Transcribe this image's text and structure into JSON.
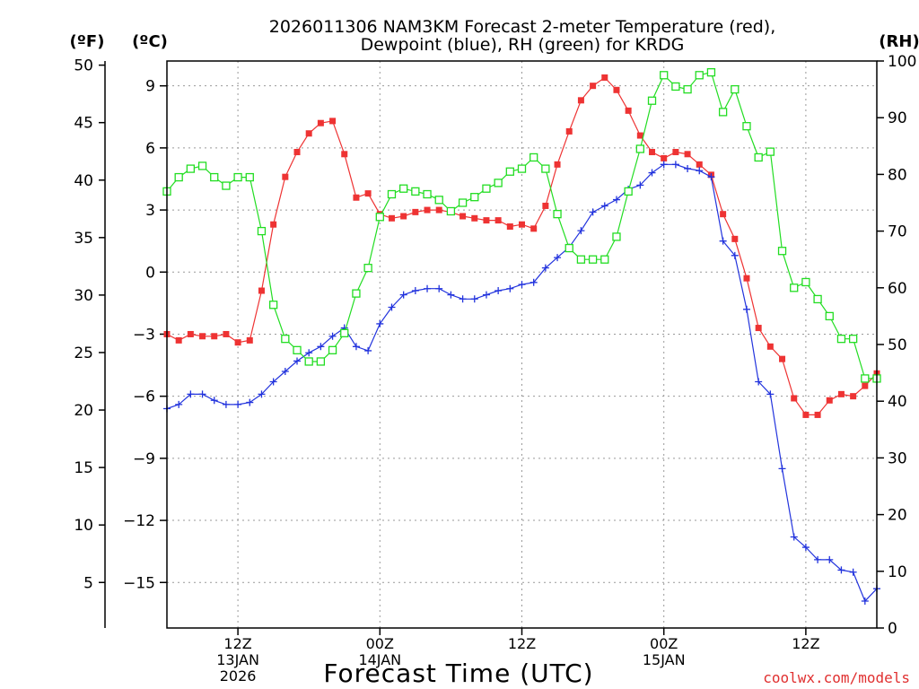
{
  "chart_data": {
    "type": "line",
    "title_line1": "2026011306 NAM3KM Forecast 2-meter Temperature (red),",
    "title_line2": "Dewpoint (blue), RH (green) for KRDG",
    "xlabel": "Forecast Time (UTC)",
    "watermark": "coolwx.com/models",
    "units_left_f": "(ºF)",
    "units_left_c": "(ºC)",
    "units_right": "(RH)",
    "hours_range": [
      0,
      60
    ],
    "ylim_c": [
      -17.2,
      10.2
    ],
    "ylim_rh": [
      0,
      100
    ],
    "x_ticks": [
      {
        "hour": 6,
        "line1": "12Z",
        "line2": "13JAN",
        "line3": "2026"
      },
      {
        "hour": 18,
        "line1": "00Z",
        "line2": "14JAN",
        "line3": ""
      },
      {
        "hour": 30,
        "line1": "12Z",
        "line2": "",
        "line3": ""
      },
      {
        "hour": 42,
        "line1": "00Z",
        "line2": "15JAN",
        "line3": ""
      },
      {
        "hour": 54,
        "line1": "12Z",
        "line2": "",
        "line3": ""
      }
    ],
    "celsius_ticks": [
      "9",
      "6",
      "3",
      "0",
      "−3",
      "−6",
      "−9",
      "−12",
      "−15"
    ],
    "fahrenheit_ticks": [
      "50",
      "45",
      "40",
      "35",
      "30",
      "25",
      "20",
      "15",
      "10",
      "5"
    ],
    "rh_ticks": [
      "100",
      "90",
      "80",
      "70",
      "60",
      "50",
      "40",
      "30",
      "20",
      "10",
      "0"
    ],
    "series": [
      {
        "name": "2-meter Temperature",
        "color": "#ee3333",
        "marker": "filled-square",
        "unit": "C",
        "values": [
          -3.0,
          -3.3,
          -3.0,
          -3.1,
          -3.1,
          -3.0,
          -3.4,
          -3.3,
          -0.9,
          2.3,
          4.6,
          5.8,
          6.7,
          7.2,
          7.3,
          5.7,
          3.6,
          3.8,
          2.8,
          2.6,
          2.7,
          2.9,
          3.0,
          3.0,
          2.9,
          2.7,
          2.6,
          2.5,
          2.5,
          2.2,
          2.3,
          2.1,
          3.2,
          5.2,
          6.8,
          8.3,
          9.0,
          9.4,
          8.8,
          7.8,
          6.6,
          5.8,
          5.5,
          5.8,
          5.7,
          5.2,
          4.7,
          2.8,
          1.6,
          -0.3,
          -2.7,
          -3.6,
          -4.2,
          -6.1,
          -6.9,
          -6.9,
          -6.2,
          -5.9,
          -6.0,
          -5.5,
          -4.9
        ]
      },
      {
        "name": "Dewpoint",
        "color": "#2233dd",
        "marker": "plus",
        "unit": "C",
        "values": [
          -6.6,
          -6.4,
          -5.9,
          -5.9,
          -6.2,
          -6.4,
          -6.4,
          -6.3,
          -5.9,
          -5.3,
          -4.8,
          -4.3,
          -3.9,
          -3.6,
          -3.1,
          -2.7,
          -3.6,
          -3.8,
          -2.5,
          -1.7,
          -1.1,
          -0.9,
          -0.8,
          -0.8,
          -1.1,
          -1.3,
          -1.3,
          -1.1,
          -0.9,
          -0.8,
          -0.6,
          -0.5,
          0.2,
          0.7,
          1.2,
          2.0,
          2.9,
          3.2,
          3.5,
          4.0,
          4.2,
          4.8,
          5.2,
          5.2,
          5.0,
          4.9,
          4.6,
          1.5,
          0.8,
          -1.8,
          -5.3,
          -5.9,
          -9.5,
          -12.8,
          -13.3,
          -13.9,
          -13.9,
          -14.4,
          -14.5,
          -15.9,
          -15.3
        ]
      },
      {
        "name": "RH",
        "color": "#22dd22",
        "marker": "open-square",
        "unit": "%",
        "values": [
          77,
          79.5,
          81,
          81.5,
          79.5,
          78,
          79.5,
          79.5,
          70,
          57,
          51,
          49,
          47,
          47,
          49,
          52,
          59,
          63.5,
          72.5,
          76.5,
          77.5,
          77,
          76.5,
          75.5,
          73.5,
          75,
          76,
          77.5,
          78.5,
          80.5,
          81,
          83,
          81,
          73,
          67,
          65,
          65,
          65,
          69,
          77,
          84.5,
          93,
          97.5,
          95.5,
          95,
          97.5,
          98,
          91,
          95,
          88.5,
          83,
          84,
          66.5,
          60,
          61,
          58,
          55,
          51,
          51,
          44,
          44
        ]
      }
    ]
  }
}
